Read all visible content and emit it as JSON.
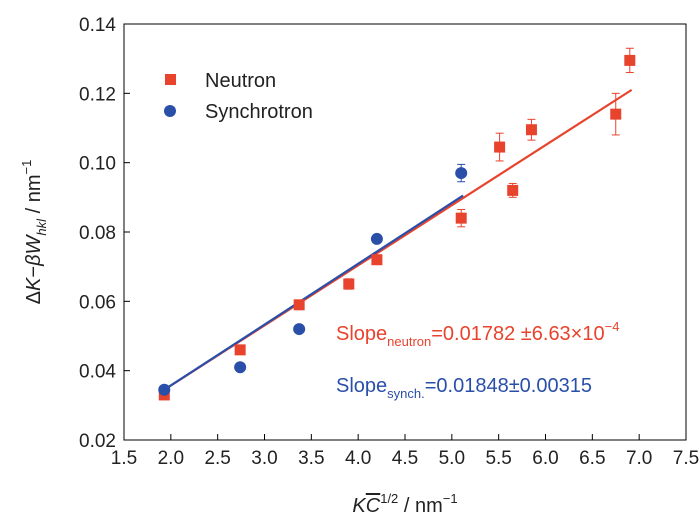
{
  "chart_data": {
    "type": "scatter",
    "xlabel_parts": {
      "k": "K",
      "c": "C",
      "exp": "1/2",
      "unit": " / nm",
      "unit_exp": "−1"
    },
    "ylabel_parts": {
      "delta": "Δ",
      "k": "K",
      "minus": "−",
      "beta": "β",
      "w": "W",
      "sub": "hkl",
      "unit": " / nm",
      "unit_exp": "−1"
    },
    "xlim": [
      1.5,
      7.5
    ],
    "ylim": [
      0.02,
      0.14
    ],
    "xticks": [
      "1.5",
      "2.0",
      "2.5",
      "3.0",
      "3.5",
      "4.0",
      "4.5",
      "5.0",
      "5.5",
      "6.0",
      "6.5",
      "7.0",
      "7.5"
    ],
    "yticks": [
      "0.02",
      "0.04",
      "0.06",
      "0.08",
      "0.10",
      "0.12",
      "0.14"
    ],
    "grid": false,
    "legend_position": "top-left",
    "series": [
      {
        "name": "Neutron",
        "marker": "square",
        "color": "#e8432d",
        "points": [
          {
            "x": 1.93,
            "y": 0.033,
            "err": 0.001
          },
          {
            "x": 2.74,
            "y": 0.046,
            "err": 0.001
          },
          {
            "x": 3.37,
            "y": 0.059,
            "err": 0.001
          },
          {
            "x": 3.9,
            "y": 0.065,
            "err": 0.0015
          },
          {
            "x": 4.2,
            "y": 0.072,
            "err": 0.001
          },
          {
            "x": 5.1,
            "y": 0.084,
            "err": 0.0025
          },
          {
            "x": 5.51,
            "y": 0.1045,
            "err": 0.004
          },
          {
            "x": 5.65,
            "y": 0.092,
            "err": 0.002
          },
          {
            "x": 5.85,
            "y": 0.1095,
            "err": 0.003
          },
          {
            "x": 6.75,
            "y": 0.114,
            "err": 0.006
          },
          {
            "x": 6.9,
            "y": 0.1295,
            "err": 0.0035
          }
        ],
        "fit_line": {
          "x": [
            1.93,
            6.92
          ],
          "y": [
            0.0345,
            0.121
          ]
        }
      },
      {
        "name": "Synchrotron",
        "marker": "circle",
        "color": "#2a4fa8",
        "points": [
          {
            "x": 1.93,
            "y": 0.0345,
            "err": 0
          },
          {
            "x": 2.74,
            "y": 0.041,
            "err": 0
          },
          {
            "x": 3.37,
            "y": 0.052,
            "err": 0
          },
          {
            "x": 4.2,
            "y": 0.078,
            "err": 0
          },
          {
            "x": 5.1,
            "y": 0.097,
            "err": 0.0025
          }
        ],
        "fit_line": {
          "x": [
            1.93,
            5.12
          ],
          "y": [
            0.0345,
            0.0905
          ]
        }
      }
    ],
    "annotations": {
      "neutron": {
        "word": "Slope",
        "sub": "neutron",
        "value": "=0.01782 ±6.63×10",
        "exp": "−4",
        "color": "#e8432d"
      },
      "synch": {
        "word": "Slope",
        "sub": "synch.",
        "value": "=0.01848±0.00315",
        "color": "#2a4fa8"
      }
    }
  }
}
